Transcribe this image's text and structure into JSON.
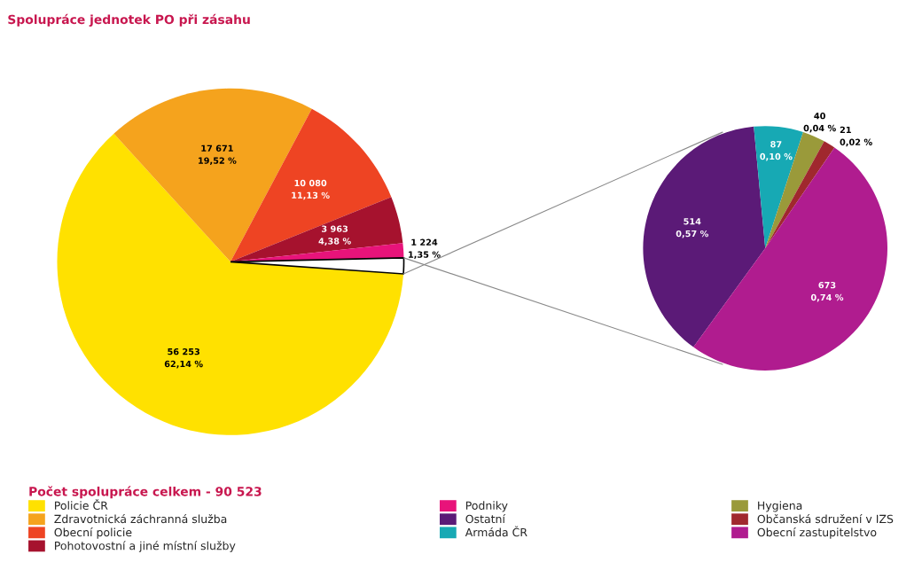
{
  "chart_data": [
    {
      "type": "pie",
      "title": "Spolupráce jednotek PO při zásahu",
      "legend_title": "Počet spolupráce celkem - 90 523",
      "legend": "bottom",
      "categories": [
        "Policie ČR",
        "Zdravotnická záchranná služba",
        "Obecní policie",
        "Pohotovostní a jiné místní služby",
        "Podniky",
        null
      ],
      "values": [
        56253,
        17671,
        10080,
        3963,
        1224,
        1335
      ],
      "colors": [
        "#ffe100",
        "#f5a31d",
        "#ee4423",
        "#a6122e",
        "#e8137a",
        "#ffffff"
      ],
      "value_labels": [
        "56 253\n62,14 %",
        "17 671\n19,52 %",
        "10 080\n11,13 %",
        "3 963\n4,38 %",
        "1 224\n1,35 %",
        null
      ]
    },
    {
      "type": "pie",
      "legend": "bottom",
      "categories": [
        "Ostatní",
        "Armáda ČR",
        "Hygiena",
        "Občanská sdružení v IZS",
        "Obecní zastupitelstvo"
      ],
      "values": [
        514,
        87,
        40,
        21,
        673
      ],
      "colors": [
        "#5b1a77",
        "#17a9b4",
        "#9a9a3a",
        "#a0282e",
        "#b01c8f"
      ],
      "value_labels": [
        "514\n0,57 %",
        "87\n0,10 %",
        "40\n0,04 %",
        "21\n0,02 %",
        "673\n0,74 %"
      ]
    }
  ]
}
